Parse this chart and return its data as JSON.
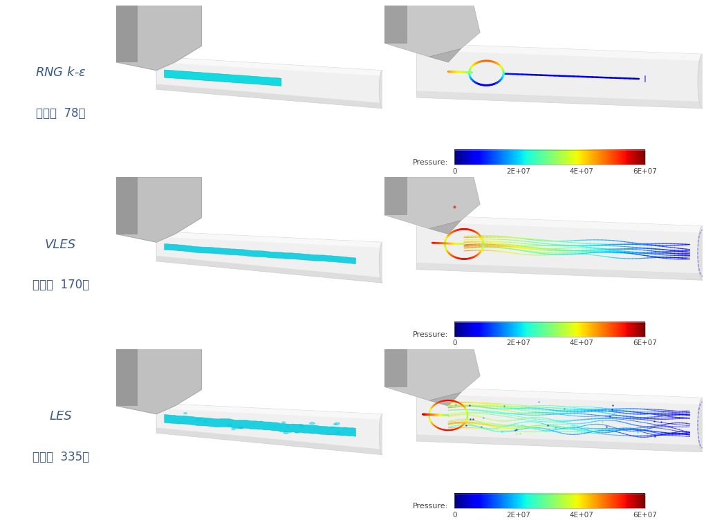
{
  "background_color": "#ffffff",
  "rows": [
    {
      "label_line1": "RNG $k$-$\\varepsilon$",
      "label_line2": "网格：  78万",
      "label_color": "#3a5a8a"
    },
    {
      "label_line1": "VLES",
      "label_line2": "网格：  170万",
      "label_color": "#3a5a8a"
    },
    {
      "label_line1": "LES",
      "label_line2": "网格：  335万",
      "label_color": "#3a5a8a"
    }
  ],
  "colorbar_label": "Pressure:",
  "colorbar_ticks": [
    "0",
    "2E+07",
    "4E+07",
    "6E+07"
  ],
  "label_fontsize": 13,
  "colorbar_label_fontsize": 8,
  "figure_width": 10.21,
  "figure_height": 7.52
}
